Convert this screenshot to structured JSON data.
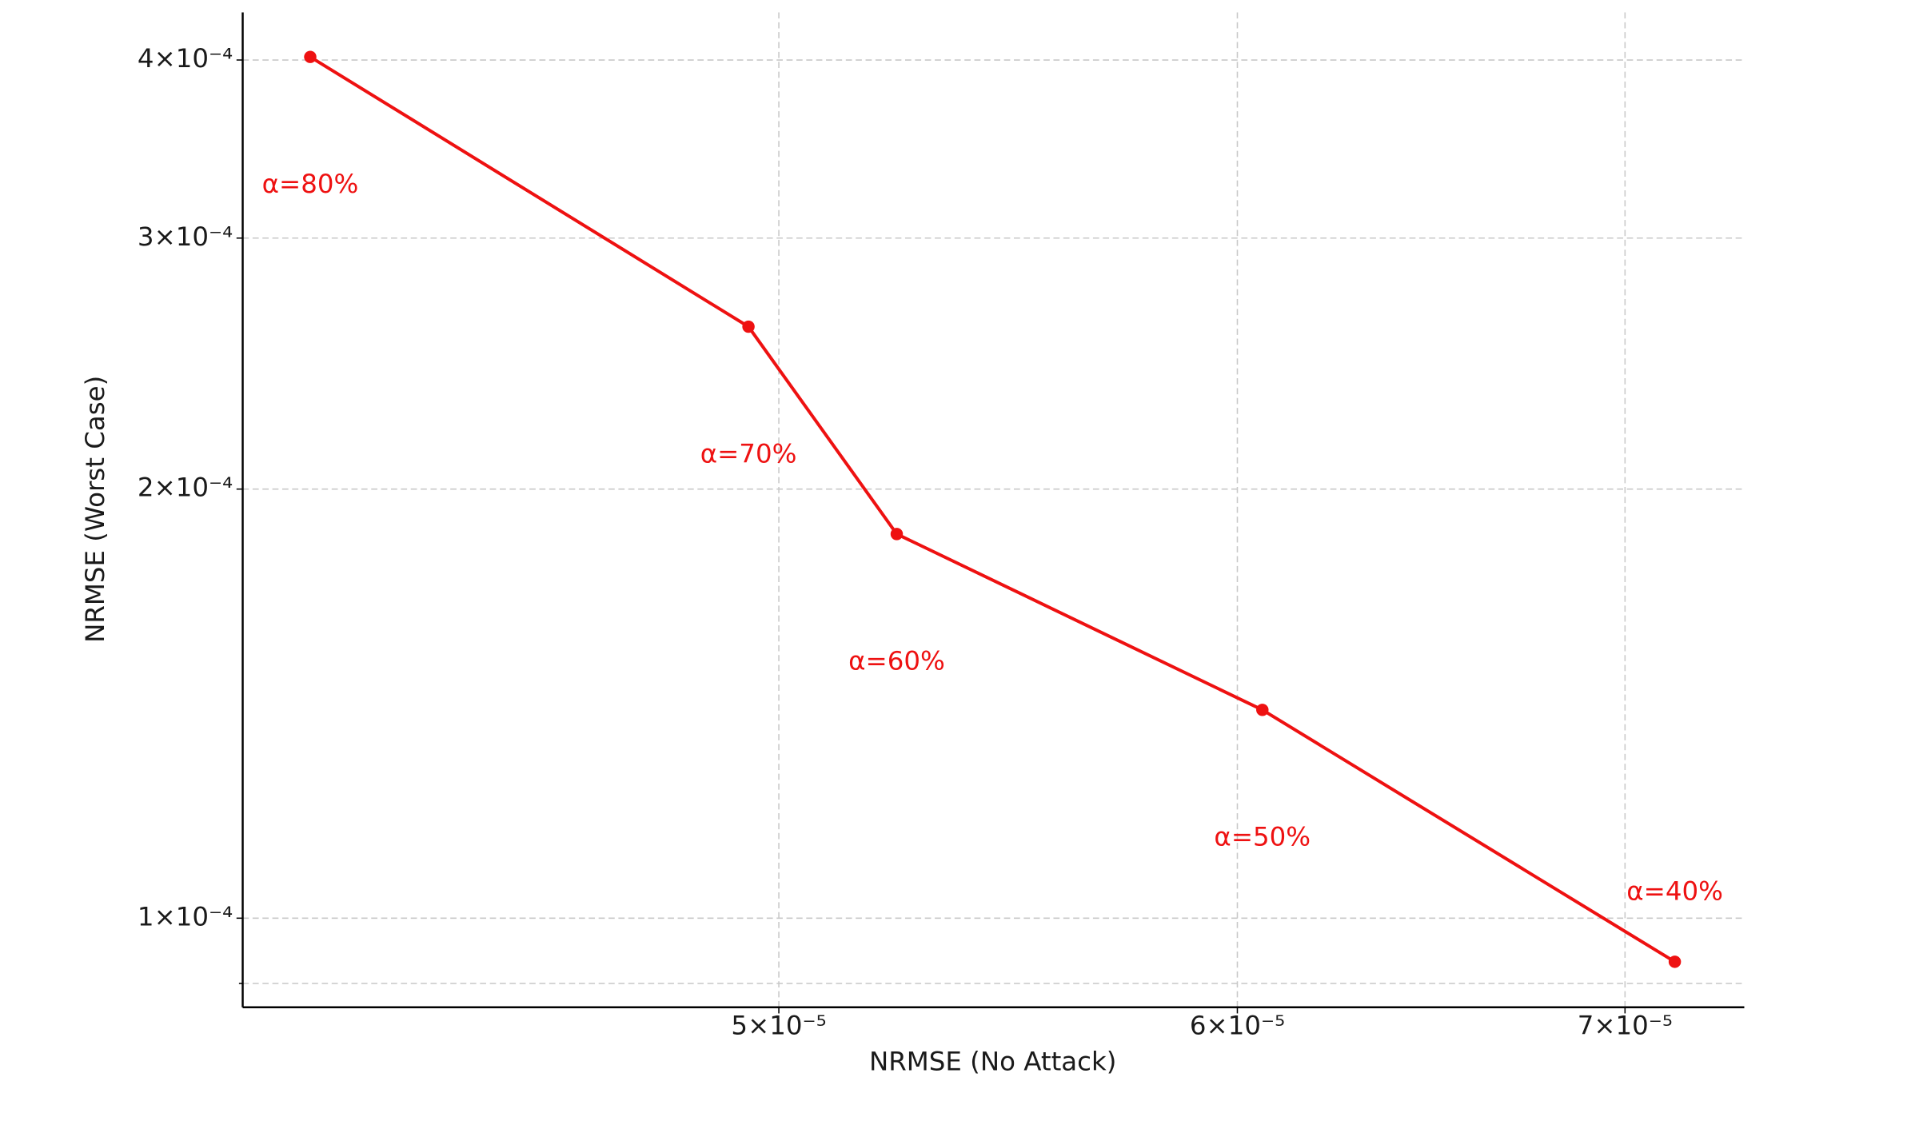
{
  "chart_data": {
    "type": "line",
    "x_label": "NRMSE (No Attack)",
    "y_label": "NRMSE (Worst Case)",
    "x": [
      4.15e-05,
      4.94e-05,
      5.24e-05,
      6.06e-05,
      7.14e-05
    ],
    "series": [
      {
        "color": "#ee1111",
        "values": [
          0.000402,
          0.00026,
          0.000186,
          0.00014,
          9.32e-05
        ],
        "point_labels": [
          "α=80%",
          "α=70%",
          "α=60%",
          "α=50%",
          "α=40%"
        ]
      }
    ],
    "xscale": "log",
    "yscale": "log",
    "xlim": [
      4.04e-05,
      7.34e-05
    ],
    "ylim": [
      8.66e-05,
      0.000432
    ],
    "xticks": [
      {
        "value": 5e-05,
        "label": "5×10⁻⁵"
      },
      {
        "value": 6e-05,
        "label": "6×10⁻⁵"
      },
      {
        "value": 7e-05,
        "label": "7×10⁻⁵"
      }
    ],
    "yticks": [
      {
        "value": 0.0001,
        "label": "1×10⁻⁴"
      },
      {
        "value": 0.0002,
        "label": "2×10⁻⁴"
      },
      {
        "value": 0.0003,
        "label": "3×10⁻⁴"
      },
      {
        "value": 0.0004,
        "label": "4×10⁻⁴"
      }
    ],
    "yminorticks": [
      9e-05
    ],
    "grid": true
  }
}
